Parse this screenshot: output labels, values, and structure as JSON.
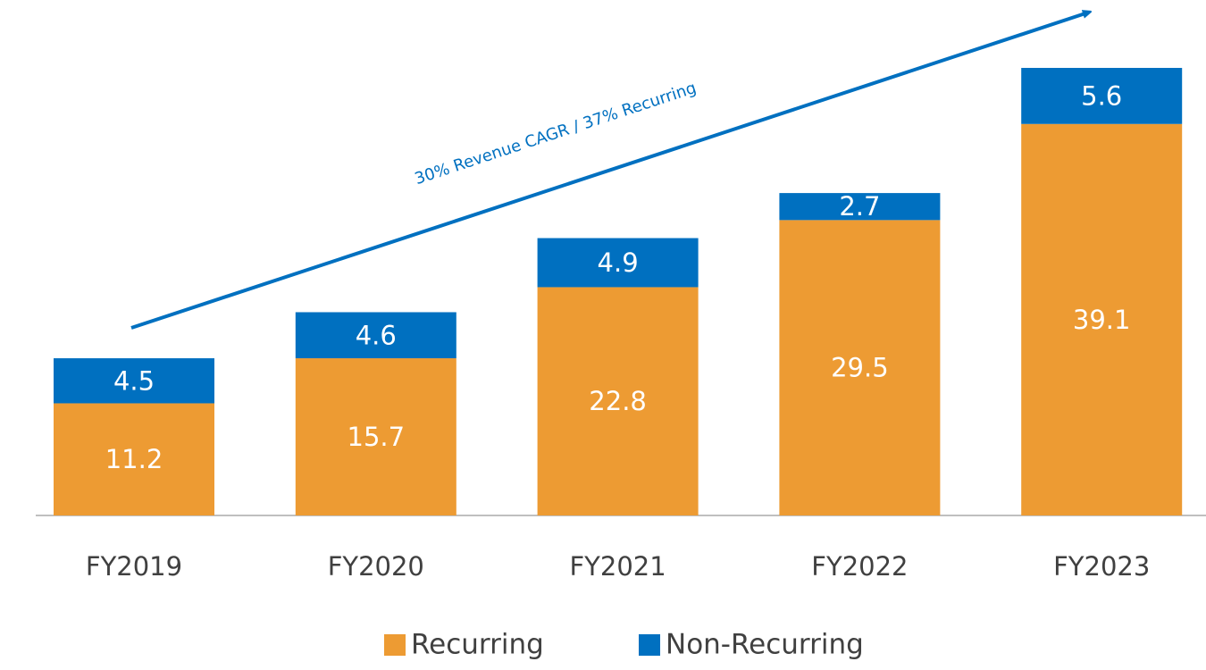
{
  "chart_data": {
    "type": "stacked_bar",
    "annotation": "30% Revenue CAGR / 37% Recurring",
    "categories": [
      "FY2019",
      "FY2020",
      "FY2021",
      "FY2022",
      "FY2023"
    ],
    "series": [
      {
        "name": "Recurring",
        "color": "#ED9B33",
        "values": [
          11.2,
          15.7,
          22.8,
          29.5,
          39.1
        ]
      },
      {
        "name": "Non-Recurring",
        "color": "#0070C0",
        "values": [
          4.5,
          4.6,
          4.9,
          2.7,
          5.6
        ]
      }
    ],
    "legend": "bottom"
  }
}
